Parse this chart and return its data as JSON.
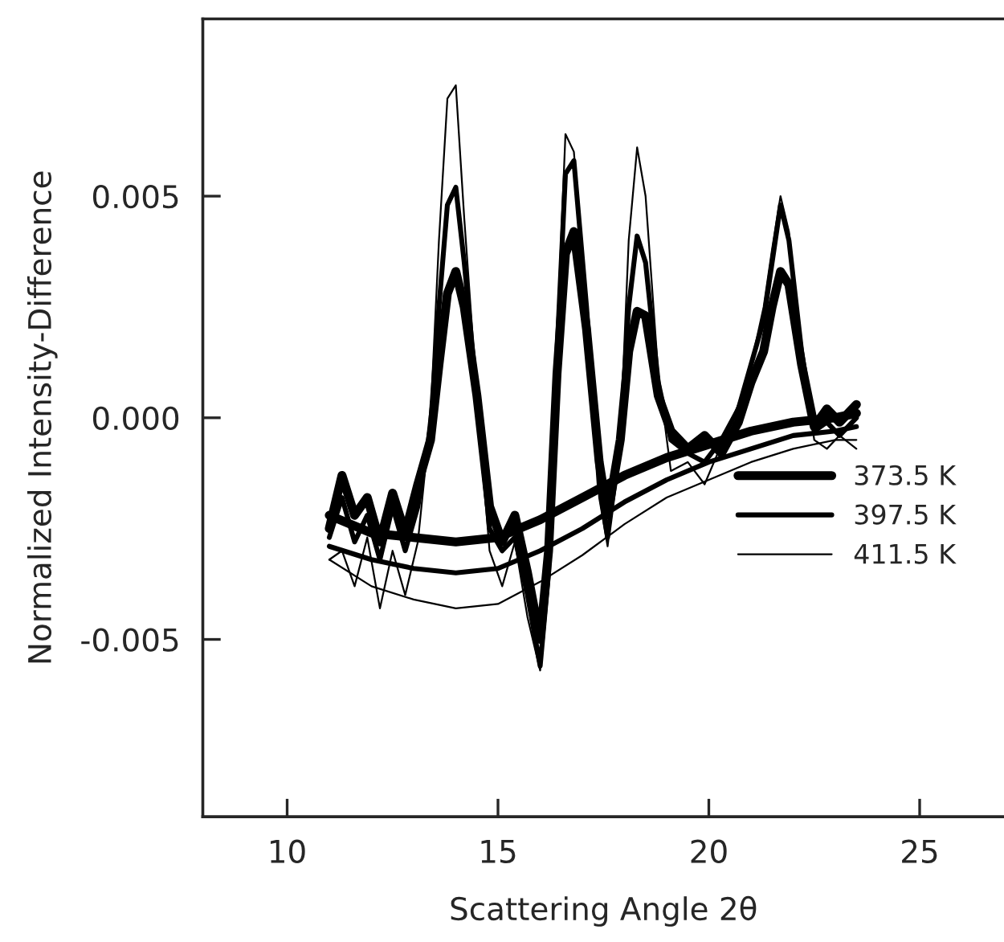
{
  "chart_data": {
    "type": "line",
    "xlabel": "Scattering Angle 2θ",
    "ylabel": "Normalized Intensity-Difference",
    "xlim": [
      8,
      27
    ],
    "ylim": [
      -0.009,
      0.009
    ],
    "xticks": [
      10,
      15,
      20,
      25
    ],
    "yticks": [
      {
        "value": -0.005,
        "label": "-0.005"
      },
      {
        "value": 0.0,
        "label": "0.000"
      },
      {
        "value": 0.005,
        "label": "0.005"
      }
    ],
    "grid": false,
    "legend": "bottom right",
    "marker": "none",
    "line_style": "solid",
    "x": [
      11.0,
      11.3,
      11.6,
      11.9,
      12.2,
      12.5,
      12.8,
      13.1,
      13.4,
      13.6,
      13.8,
      14.0,
      14.2,
      14.5,
      14.8,
      15.1,
      15.4,
      15.7,
      16.0,
      16.2,
      16.4,
      16.6,
      16.8,
      17.1,
      17.4,
      17.6,
      17.9,
      18.1,
      18.3,
      18.5,
      18.8,
      19.1,
      19.5,
      19.9,
      20.3,
      20.7,
      21.0,
      21.3,
      21.5,
      21.7,
      21.9,
      22.2,
      22.5,
      22.8,
      23.1,
      23.5
    ],
    "series": [
      {
        "name": "373.5 K",
        "color": "#000000",
        "values": [
          -0.0025,
          -0.0013,
          -0.0022,
          -0.0018,
          -0.0028,
          -0.0017,
          -0.0026,
          -0.0015,
          -0.0005,
          0.0012,
          0.0028,
          0.0033,
          0.0025,
          0.0005,
          -0.002,
          -0.0028,
          -0.0022,
          -0.0035,
          -0.005,
          -0.003,
          0.001,
          0.0037,
          0.0042,
          0.002,
          -0.001,
          -0.0022,
          -0.0005,
          0.0015,
          0.0024,
          0.0023,
          0.0005,
          -0.0003,
          -0.0007,
          -0.0004,
          -0.0008,
          -0.0001,
          0.0008,
          0.0015,
          0.0025,
          0.0033,
          0.003,
          0.0012,
          -0.0002,
          0.0002,
          -0.0001,
          0.0003
        ]
      },
      {
        "name": "397.5 K",
        "color": "#000000",
        "values": [
          -0.0027,
          -0.0018,
          -0.0028,
          -0.0022,
          -0.0032,
          -0.002,
          -0.003,
          -0.002,
          -0.0002,
          0.0025,
          0.0048,
          0.0052,
          0.0035,
          0.0005,
          -0.0025,
          -0.003,
          -0.0027,
          -0.004,
          -0.0056,
          -0.0035,
          0.0015,
          0.0055,
          0.0058,
          0.0025,
          -0.0015,
          -0.0027,
          -0.0005,
          0.0025,
          0.0041,
          0.0035,
          0.0008,
          -0.0005,
          -0.0008,
          -0.001,
          -0.0005,
          0.0002,
          0.0012,
          0.0022,
          0.0035,
          0.0048,
          0.004,
          0.0015,
          -0.0003,
          -0.0001,
          -0.0004,
          0.0
        ]
      },
      {
        "name": "411.5 K",
        "color": "#000000",
        "values": [
          -0.0032,
          -0.003,
          -0.0038,
          -0.0027,
          -0.0043,
          -0.003,
          -0.004,
          -0.0028,
          0.0,
          0.004,
          0.0072,
          0.0075,
          0.0045,
          0.0005,
          -0.003,
          -0.0038,
          -0.0028,
          -0.0045,
          -0.0057,
          -0.0038,
          0.0018,
          0.0064,
          0.006,
          0.0025,
          -0.0018,
          -0.0029,
          -0.0005,
          0.004,
          0.0061,
          0.005,
          0.001,
          -0.0012,
          -0.001,
          -0.0015,
          -0.0006,
          0.0003,
          0.0012,
          0.0025,
          0.0038,
          0.005,
          0.0042,
          0.0015,
          -0.0005,
          -0.0007,
          -0.0004,
          -0.0007
        ]
      },
      {
        "color": "#000000",
        "x": [
          11,
          12,
          13,
          14,
          15,
          16,
          17,
          18,
          19,
          20,
          21,
          22,
          23,
          23.5
        ],
        "values": [
          -0.0022,
          -0.0026,
          -0.0027,
          -0.0028,
          -0.0027,
          -0.0023,
          -0.0018,
          -0.0013,
          -0.0009,
          -0.0006,
          -0.0003,
          -0.0001,
          0.0,
          0.0001
        ]
      },
      {
        "color": "#000000",
        "x": [
          11,
          12,
          13,
          14,
          15,
          16,
          17,
          18,
          19,
          20,
          21,
          22,
          23,
          23.5
        ],
        "values": [
          -0.0029,
          -0.0032,
          -0.0034,
          -0.0035,
          -0.0034,
          -0.003,
          -0.0025,
          -0.0019,
          -0.0014,
          -0.001,
          -0.0007,
          -0.0004,
          -0.0003,
          -0.0002
        ]
      },
      {
        "color": "#000000",
        "x": [
          11,
          12,
          13,
          14,
          15,
          16,
          17,
          18,
          19,
          20,
          21,
          22,
          23,
          23.5
        ],
        "values": [
          -0.0032,
          -0.0038,
          -0.0041,
          -0.0043,
          -0.0042,
          -0.0037,
          -0.0031,
          -0.0024,
          -0.0018,
          -0.0014,
          -0.001,
          -0.0007,
          -0.0005,
          -0.0005
        ]
      }
    ]
  }
}
